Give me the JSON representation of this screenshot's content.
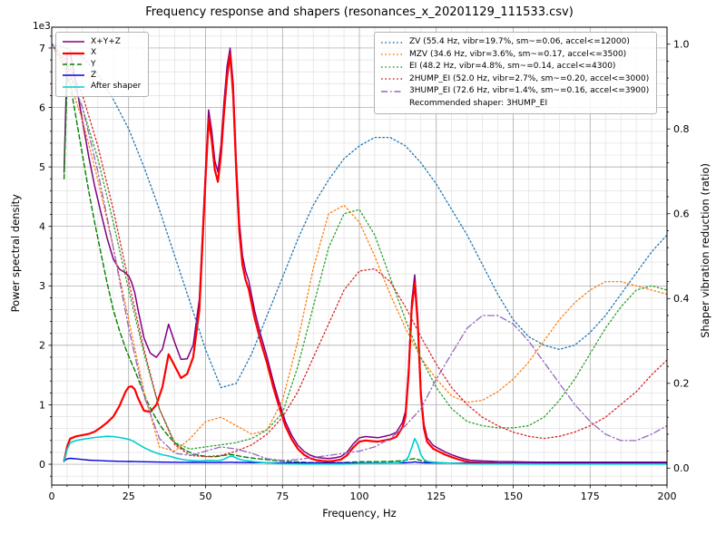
{
  "title": "Frequency response and shapers (resonances_x_20201129_111533.csv)",
  "axes": {
    "x": {
      "label": "Frequency, Hz",
      "ticks": [
        0,
        25,
        50,
        75,
        100,
        125,
        150,
        175,
        200
      ],
      "lim": [
        0,
        200
      ],
      "minor_step": 5
    },
    "y_left": {
      "label": "Power spectral density",
      "offset_text": "1e3",
      "ticks": [
        0,
        1,
        2,
        3,
        4,
        5,
        6,
        7
      ],
      "tick_scale": 1000,
      "lim": [
        -350,
        7350
      ],
      "minor_step": 200
    },
    "y_right": {
      "label": "Shaper vibration reduction (ratio)",
      "ticks": [
        0,
        0.2,
        0.4,
        0.6,
        0.8,
        1.0
      ],
      "lim": [
        -0.04,
        1.04
      ],
      "minor_step": 0.04
    }
  },
  "colors": {
    "grid_major": "#9f9f9f",
    "grid_minor": "#dcdcdc",
    "spine": "#000000",
    "text": "#000000",
    "legend_border": "#b3b3b3"
  },
  "chart_data": {
    "type": "line",
    "x_hz": [
      4,
      5,
      6,
      8,
      10,
      12,
      14,
      16,
      18,
      20,
      22,
      24,
      25,
      26,
      27,
      28,
      30,
      32,
      34,
      36,
      38,
      40,
      42,
      44,
      46,
      48,
      50,
      51,
      52,
      53,
      54,
      55,
      56,
      57,
      58,
      59,
      60,
      61,
      62,
      63,
      64,
      66,
      68,
      70,
      72,
      74,
      76,
      78,
      80,
      82,
      84,
      86,
      88,
      90,
      92,
      94,
      96,
      98,
      100,
      102,
      104,
      106,
      108,
      110,
      112,
      114,
      115,
      116,
      117,
      118,
      119,
      120,
      121,
      122,
      124,
      126,
      128,
      130,
      132,
      134,
      136,
      140,
      145,
      150,
      155,
      160,
      165,
      170,
      175,
      180,
      185,
      190,
      195,
      200
    ],
    "psd_series": [
      {
        "name": "X+Y+Z",
        "color": "#800080",
        "style": "solid",
        "width": 1.5,
        "values": [
          4910,
          6890,
          6930,
          6360,
          5770,
          5180,
          4665,
          4230,
          3805,
          3452,
          3280,
          3218,
          3167,
          3056,
          2885,
          2614,
          2122,
          1870,
          1798,
          1936,
          2355,
          2044,
          1763,
          1772,
          2006,
          2780,
          4965,
          5960,
          5608,
          5108,
          4912,
          5371,
          6082,
          6691,
          7000,
          6391,
          5079,
          4068,
          3507,
          3248,
          3090,
          2575,
          2164,
          1803,
          1393,
          1032,
          714,
          487,
          321,
          216,
          152,
          120,
          103,
          97,
          108,
          130,
          204,
          340,
          444,
          466,
          456,
          446,
          468,
          491,
          535,
          704,
          891,
          1606,
          2720,
          3185,
          2462,
          1239,
          675,
          446,
          316,
          259,
          204,
          160,
          122,
          90,
          68,
          56,
          47,
          43,
          38,
          35,
          35,
          35,
          35,
          35,
          35,
          35,
          35,
          35
        ]
      },
      {
        "name": "X",
        "color": "#ff0000",
        "style": "solid",
        "width": 2.2,
        "values": [
          50,
          300,
          430,
          470,
          490,
          510,
          550,
          620,
          700,
          800,
          980,
          1220,
          1300,
          1310,
          1260,
          1120,
          900,
          880,
          1000,
          1300,
          1850,
          1650,
          1450,
          1520,
          1800,
          2600,
          4800,
          5800,
          5450,
          4950,
          4750,
          5200,
          5900,
          6500,
          6900,
          6200,
          4900,
          3900,
          3350,
          3100,
          2950,
          2450,
          2050,
          1700,
          1300,
          950,
          640,
          420,
          260,
          160,
          100,
          70,
          55,
          50,
          60,
          80,
          150,
          280,
          380,
          400,
          390,
          380,
          400,
          420,
          460,
          620,
          800,
          1500,
          2600,
          3050,
          2350,
          1150,
          600,
          380,
          260,
          210,
          160,
          120,
          85,
          55,
          35,
          25,
          18,
          15,
          12,
          10,
          10,
          10,
          10,
          10,
          10,
          10,
          10,
          10
        ]
      },
      {
        "name": "Y",
        "color": "#008000",
        "style": "dashed",
        "width": 1.4,
        "values": [
          4800,
          6500,
          6400,
          5800,
          5200,
          4600,
          4050,
          3550,
          3050,
          2600,
          2250,
          1950,
          1820,
          1700,
          1580,
          1450,
          1180,
          950,
          760,
          600,
          470,
          360,
          280,
          220,
          175,
          150,
          135,
          130,
          128,
          128,
          132,
          140,
          150,
          158,
          165,
          158,
          148,
          138,
          128,
          120,
          112,
          98,
          88,
          78,
          68,
          58,
          50,
          44,
          38,
          34,
          30,
          28,
          26,
          25,
          26,
          28,
          32,
          38,
          42,
          44,
          44,
          44,
          46,
          48,
          52,
          60,
          66,
          78,
          88,
          95,
          80,
          62,
          50,
          42,
          34,
          28,
          24,
          20,
          18,
          16,
          15,
          14,
          13,
          12,
          11,
          10,
          10,
          10,
          10,
          10,
          10,
          10,
          10,
          10
        ]
      },
      {
        "name": "Z",
        "color": "#0000dd",
        "style": "solid",
        "width": 1.4,
        "values": [
          60,
          90,
          100,
          90,
          80,
          70,
          65,
          60,
          55,
          52,
          50,
          48,
          47,
          46,
          45,
          44,
          42,
          40,
          38,
          36,
          35,
          34,
          33,
          32,
          31,
          30,
          30,
          30,
          30,
          30,
          30,
          31,
          32,
          33,
          35,
          33,
          31,
          30,
          29,
          28,
          28,
          27,
          26,
          25,
          25,
          24,
          24,
          23,
          23,
          22,
          22,
          22,
          22,
          22,
          22,
          22,
          22,
          22,
          22,
          22,
          22,
          22,
          22,
          23,
          23,
          24,
          25,
          28,
          32,
          40,
          32,
          27,
          25,
          24,
          22,
          21,
          20,
          20,
          19,
          19,
          18,
          17,
          16,
          16,
          15,
          15,
          15,
          15,
          15,
          15,
          15,
          15,
          15,
          15
        ]
      },
      {
        "name": "After shaper",
        "color": "#00cfcf",
        "style": "solid",
        "width": 1.6,
        "values": [
          45,
          250,
          360,
          400,
          420,
          435,
          450,
          460,
          470,
          465,
          450,
          430,
          420,
          400,
          375,
          340,
          280,
          230,
          190,
          160,
          140,
          110,
          85,
          70,
          60,
          55,
          60,
          65,
          65,
          62,
          62,
          70,
          85,
          110,
          135,
          130,
          105,
          85,
          70,
          62,
          55,
          42,
          32,
          25,
          18,
          12,
          8,
          6,
          5,
          4,
          3,
          3,
          3,
          3,
          3,
          4,
          6,
          10,
          14,
          16,
          16,
          17,
          18,
          20,
          24,
          40,
          60,
          130,
          280,
          430,
          330,
          160,
          80,
          50,
          35,
          28,
          22,
          18,
          14,
          10,
          8,
          6,
          5,
          5,
          4,
          4,
          4,
          4,
          4,
          4,
          4,
          4,
          4,
          4
        ]
      }
    ],
    "shaper_freqs_hz": [
      0,
      5,
      10,
      15,
      20,
      25,
      30,
      35,
      40,
      45,
      50,
      55,
      60,
      65,
      70,
      75,
      80,
      85,
      90,
      95,
      100,
      105,
      110,
      115,
      120,
      125,
      130,
      135,
      140,
      145,
      150,
      155,
      160,
      165,
      170,
      175,
      180,
      185,
      190,
      195,
      200
    ],
    "shaper_series": [
      {
        "name": "ZV",
        "label": "ZV (55.4 Hz, vibr=19.7%, sm~=0.06, accel<=12000)",
        "color": "#1f77b4",
        "style": "dotted",
        "values": [
          1.0,
          0.99,
          0.97,
          0.93,
          0.87,
          0.8,
          0.71,
          0.61,
          0.5,
          0.39,
          0.28,
          0.19,
          0.2,
          0.27,
          0.36,
          0.45,
          0.54,
          0.62,
          0.68,
          0.73,
          0.76,
          0.78,
          0.78,
          0.76,
          0.72,
          0.67,
          0.61,
          0.55,
          0.48,
          0.41,
          0.35,
          0.31,
          0.29,
          0.28,
          0.29,
          0.32,
          0.36,
          0.41,
          0.46,
          0.51,
          0.55
        ]
      },
      {
        "name": "MZV",
        "label": "MZV (34.6 Hz, vibr=3.6%, sm~=0.17, accel<=3500)",
        "color": "#ff7f0e",
        "style": "dotted",
        "values": [
          1.0,
          0.93,
          0.82,
          0.68,
          0.52,
          0.35,
          0.18,
          0.05,
          0.04,
          0.07,
          0.11,
          0.12,
          0.1,
          0.08,
          0.09,
          0.16,
          0.3,
          0.47,
          0.6,
          0.62,
          0.58,
          0.5,
          0.41,
          0.33,
          0.26,
          0.21,
          0.17,
          0.155,
          0.16,
          0.18,
          0.21,
          0.25,
          0.3,
          0.35,
          0.39,
          0.42,
          0.44,
          0.44,
          0.43,
          0.42,
          0.41
        ]
      },
      {
        "name": "EI",
        "label": "EI (48.2 Hz, vibr=4.8%, sm~=0.14, accel<=4300)",
        "color": "#2ca02c",
        "style": "dotted",
        "values": [
          1.0,
          0.94,
          0.85,
          0.73,
          0.58,
          0.42,
          0.27,
          0.14,
          0.06,
          0.045,
          0.05,
          0.055,
          0.06,
          0.07,
          0.09,
          0.13,
          0.24,
          0.38,
          0.52,
          0.6,
          0.61,
          0.55,
          0.45,
          0.35,
          0.26,
          0.19,
          0.14,
          0.11,
          0.1,
          0.095,
          0.095,
          0.1,
          0.12,
          0.16,
          0.21,
          0.27,
          0.33,
          0.38,
          0.42,
          0.43,
          0.42
        ]
      },
      {
        "name": "2HUMP_EI",
        "label": "2HUMP_EI (52.0 Hz, vibr=2.7%, sm~=0.20, accel<=3000)",
        "color": "#d62728",
        "style": "dotted",
        "values": [
          1.0,
          0.96,
          0.88,
          0.76,
          0.61,
          0.44,
          0.28,
          0.14,
          0.055,
          0.03,
          0.027,
          0.03,
          0.04,
          0.055,
          0.08,
          0.12,
          0.18,
          0.26,
          0.34,
          0.42,
          0.465,
          0.47,
          0.44,
          0.38,
          0.31,
          0.245,
          0.19,
          0.15,
          0.12,
          0.1,
          0.085,
          0.075,
          0.07,
          0.075,
          0.085,
          0.1,
          0.12,
          0.15,
          0.18,
          0.22,
          0.255
        ]
      },
      {
        "name": "3HUMP_EI",
        "label": "3HUMP_EI (72.6 Hz, vibr=1.4%, sm~=0.16, accel<=3900)",
        "color": "#9467bd",
        "style": "dashdot",
        "values": [
          1.0,
          0.95,
          0.85,
          0.7,
          0.52,
          0.33,
          0.17,
          0.07,
          0.035,
          0.03,
          0.04,
          0.05,
          0.045,
          0.035,
          0.022,
          0.018,
          0.02,
          0.025,
          0.03,
          0.035,
          0.04,
          0.05,
          0.07,
          0.1,
          0.14,
          0.21,
          0.27,
          0.33,
          0.36,
          0.36,
          0.34,
          0.3,
          0.25,
          0.2,
          0.15,
          0.11,
          0.08,
          0.065,
          0.065,
          0.08,
          0.1
        ]
      }
    ],
    "recommended": "Recommended shaper: 3HUMP_EI"
  }
}
